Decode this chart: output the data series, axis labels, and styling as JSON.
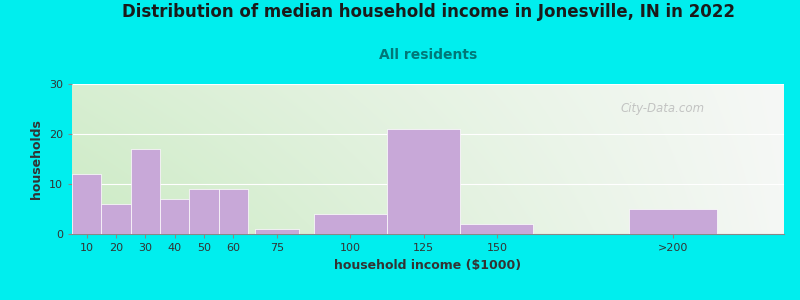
{
  "title": "Distribution of median household income in Jonesville, IN in 2022",
  "subtitle": "All residents",
  "xlabel": "household income ($1000)",
  "ylabel": "households",
  "bar_labels": [
    "10",
    "20",
    "30",
    "40",
    "50",
    "60",
    "75",
    "100",
    "125",
    "150",
    ">200"
  ],
  "bar_heights": [
    12,
    6,
    17,
    7,
    9,
    9,
    1,
    4,
    21,
    2,
    5
  ],
  "bar_color": "#C8A8D8",
  "bar_edgecolor": "#FFFFFF",
  "background_color": "#00EEEE",
  "ylim": [
    0,
    30
  ],
  "yticks": [
    0,
    10,
    20,
    30
  ],
  "title_fontsize": 12,
  "subtitle_fontsize": 10,
  "subtitle_color": "#007777",
  "title_color": "#1a1a1a",
  "watermark": "City-Data.com",
  "bar_positions": [
    10,
    20,
    30,
    40,
    50,
    60,
    75,
    100,
    125,
    150,
    210
  ],
  "bar_widths": [
    10,
    10,
    10,
    10,
    10,
    10,
    15,
    25,
    25,
    25,
    30
  ],
  "xlabel_color": "#333333",
  "ylabel_color": "#333333",
  "tick_color": "#333333"
}
